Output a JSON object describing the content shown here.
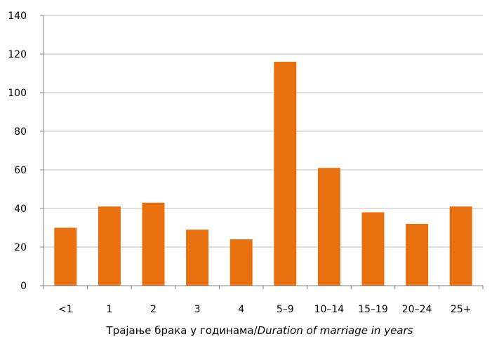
{
  "chart_data": {
    "type": "bar",
    "categories": [
      "<1",
      "1",
      "2",
      "3",
      "4",
      "5–9",
      "10–14",
      "15–19",
      "20–24",
      "25+"
    ],
    "values": [
      30,
      41,
      43,
      29,
      24,
      116,
      61,
      38,
      32,
      41
    ],
    "title": "",
    "xlabel": {
      "main": "Трајање брака у годинама/",
      "italic": "Duration of marriage in years"
    },
    "ylabel": "",
    "ylim": [
      0,
      140
    ],
    "yticks": [
      0,
      20,
      40,
      60,
      80,
      100,
      120,
      140
    ],
    "grid": true,
    "legend": "none",
    "colors": {
      "bar": "#E8700E",
      "grid": "#bfbfbf",
      "axis": "#808080"
    }
  }
}
